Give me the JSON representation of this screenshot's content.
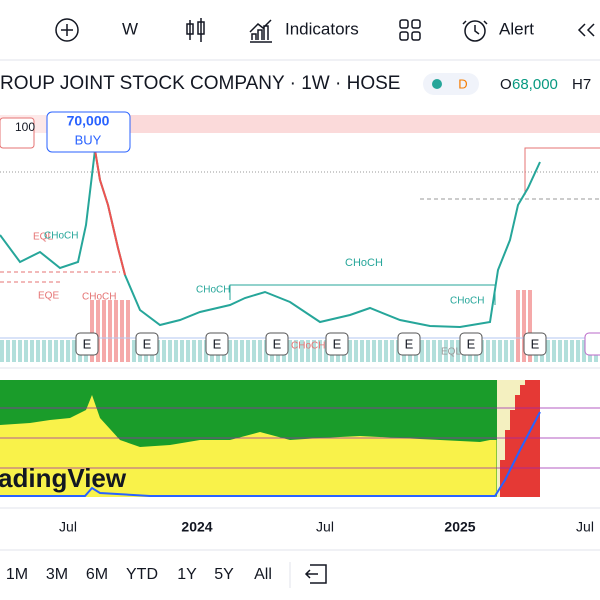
{
  "toolbar": {
    "interval": "W",
    "indicators": "Indicators",
    "alert": "Alert"
  },
  "header": {
    "title": "ROUP JOINT STOCK COMPANY · 1W · HOSE",
    "badge": "D",
    "open_label": "O",
    "open_value": "68,000",
    "high_label": "H7"
  },
  "price_labels": {
    "level": "100",
    "order_price": "70,000",
    "order_side": "BUY"
  },
  "annotations": [
    "EQL",
    "CHoCH",
    "EQE",
    "CHoCH",
    "CHoCH",
    "CHoCH",
    "CHoCH",
    "CHoCH",
    "EQL"
  ],
  "event_markers": [
    "E",
    "E",
    "E",
    "E",
    "E",
    "E",
    "E",
    "E"
  ],
  "watermark": "adingView",
  "time_axis": [
    "Jul",
    "2024",
    "Jul",
    "2025",
    "Jul"
  ],
  "ranges": [
    "1M",
    "3M",
    "6M",
    "YTD",
    "1Y",
    "5Y",
    "All"
  ]
}
